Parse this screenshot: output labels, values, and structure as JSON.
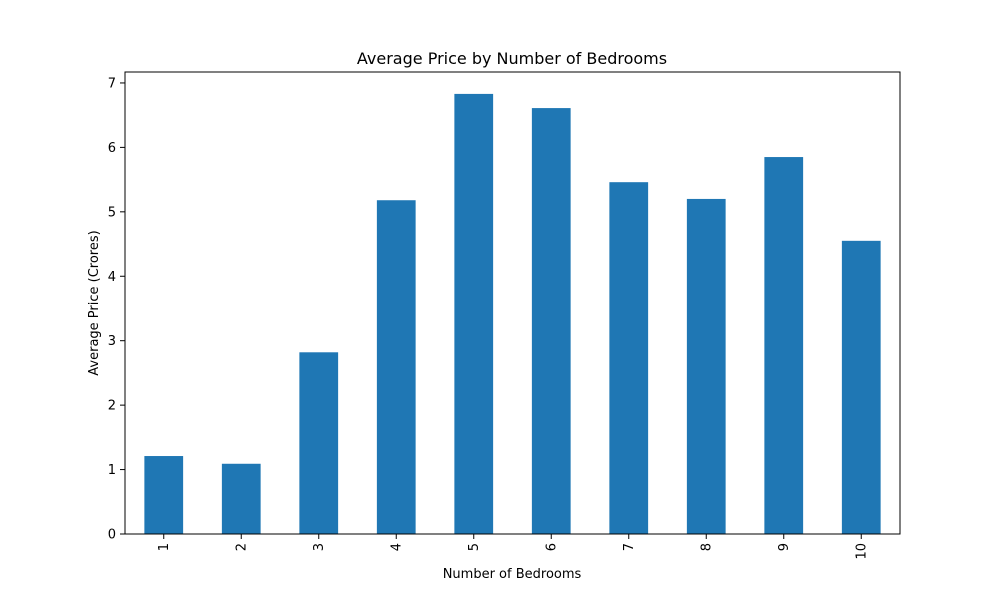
{
  "chart_data": {
    "type": "bar",
    "title": "Average Price by Number of Bedrooms",
    "xlabel": "Number of Bedrooms",
    "ylabel": "Average Price (Crores)",
    "categories": [
      "1",
      "2",
      "3",
      "4",
      "5",
      "6",
      "7",
      "8",
      "9",
      "10"
    ],
    "values": [
      1.21,
      1.09,
      2.82,
      5.18,
      6.83,
      6.61,
      5.46,
      5.2,
      5.85,
      4.55
    ],
    "ylim": [
      0,
      7.17
    ],
    "yticks": [
      "0",
      "1",
      "2",
      "3",
      "4",
      "5",
      "6",
      "7"
    ],
    "x_tick_rotation": 90,
    "bar_color": "#1f77b4",
    "grid": false,
    "legend": "none"
  }
}
